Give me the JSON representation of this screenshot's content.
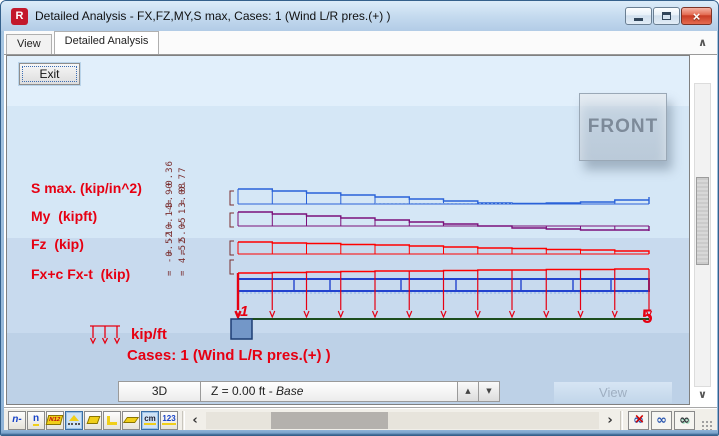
{
  "window": {
    "title": "Detailed Analysis - FX,FZ,MY,S max, Cases: 1 (Wind L/R pres.(+) )",
    "icon_letter": "R"
  },
  "tabs": [
    {
      "label": "View",
      "active": false
    },
    {
      "label": "Detailed Analysis",
      "active": true
    }
  ],
  "exit_button": "Exit",
  "view_cube": {
    "label": "FRONT"
  },
  "diagram_panel": {
    "member_nodes": {
      "start": "1",
      "end": "5"
    },
    "series": [
      {
        "id": "s_max",
        "label": "S max. (kip/in^2)",
        "color": "#2a62d8",
        "start_values": [
          "= -0.36",
          "= 0.77"
        ],
        "profile": [
          15,
          13,
          11,
          9,
          7,
          5,
          3,
          1,
          0.5,
          1,
          2,
          4,
          7
        ]
      },
      {
        "id": "my",
        "label": "My  (kipft)",
        "color": "#7b107b",
        "start_values": [
          "= -3.90",
          "= 13.08"
        ],
        "profile": [
          14,
          12,
          10,
          8,
          6,
          4,
          2,
          0,
          -2,
          -3,
          -4,
          -4,
          -5
        ]
      },
      {
        "id": "fz",
        "label": "Fz  (kip)",
        "color": "#ff0000",
        "start_values": [
          "= -10.14",
          "= 5.05"
        ],
        "profile": [
          12,
          11,
          10.5,
          9.5,
          9,
          8,
          7,
          6,
          5.5,
          4.5,
          4,
          3,
          2
        ]
      },
      {
        "id": "fx",
        "label": "Fx+c Fx-t  (kip)",
        "color": "#ff0000",
        "start_values": [
          "= -0.52",
          "= 4.52"
        ],
        "profile": [
          6,
          6.5,
          7,
          7.5,
          8,
          8,
          8.5,
          9,
          9,
          9.5,
          9.5,
          10,
          10
        ]
      }
    ],
    "load_legend": {
      "unit": "kip/ft",
      "cases": "Cases: 1 (Wind L/R pres.(+) )"
    }
  },
  "bottom_bar": {
    "mode": "3D",
    "elevation_prefix": "Z = 0.00 ft - ",
    "elevation_name": "Base",
    "view_button": "View"
  },
  "bottom_toolbar": {
    "left_icons": [
      {
        "name": "node-symbols-icon",
        "glyph": "n-",
        "style": "blue-italic",
        "pressed": false
      },
      {
        "name": "bar-numbers-icon",
        "glyph": "n",
        "style": "blue-underline",
        "pressed": false
      },
      {
        "name": "section-names-icon",
        "glyph": "N12",
        "style": "tag",
        "pressed": false
      },
      {
        "name": "supports-icon",
        "glyph": "",
        "style": "support",
        "pressed": true
      },
      {
        "name": "sketch-view-icon",
        "glyph": "",
        "style": "flag",
        "pressed": false
      },
      {
        "name": "local-axes-icon",
        "glyph": "",
        "style": "bracket",
        "pressed": false
      },
      {
        "name": "section-shape-icon",
        "glyph": "",
        "style": "plate",
        "pressed": false
      },
      {
        "name": "dimension-lines-icon",
        "glyph": "cm",
        "style": "cm",
        "pressed": true
      },
      {
        "name": "values-display-icon",
        "glyph": "123",
        "style": "123",
        "pressed": false
      }
    ],
    "right_icons": [
      {
        "name": "hide-objects-glasses-icon",
        "crossed": true
      },
      {
        "name": "show-objects-glasses-icon",
        "crossed": false
      },
      {
        "name": "shaded-view-glasses-icon",
        "crossed": false,
        "dark": true
      }
    ]
  },
  "glyphs": {
    "chevron_up": "∧",
    "chevron_down": "∨",
    "scroll_left": "‹",
    "scroll_right": "›",
    "spin_up": "▲",
    "spin_down": "▼",
    "glasses": "∞",
    "red_x": "×"
  }
}
